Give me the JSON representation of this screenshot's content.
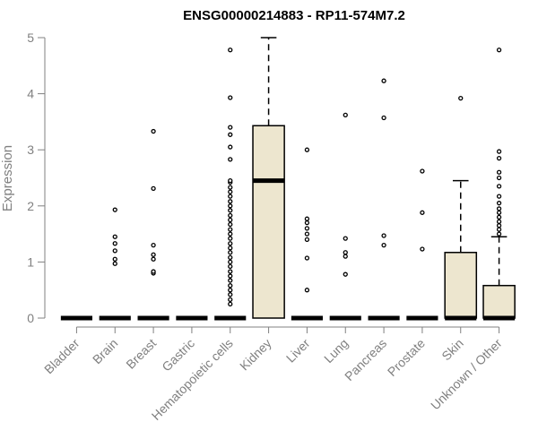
{
  "chart_data": {
    "type": "box",
    "title": "ENSG00000214883 - RP11-574M7.2",
    "xlabel": "",
    "ylabel": "Expression",
    "ylim": [
      0,
      5
    ],
    "yticks": [
      0,
      1,
      2,
      3,
      4,
      5
    ],
    "categories": [
      "Bladder",
      "Brain",
      "Breast",
      "Gastric",
      "Hematopoietic cells",
      "Kidney",
      "Liver",
      "Lung",
      "Pancreas",
      "Prostate",
      "Skin",
      "Unknown / Other"
    ],
    "boxes": [
      {
        "category": "Bladder",
        "q1": 0,
        "median": 0,
        "q3": 0,
        "whisker_low": 0,
        "whisker_high": 0,
        "outliers": []
      },
      {
        "category": "Brain",
        "q1": 0,
        "median": 0,
        "q3": 0,
        "whisker_low": 0,
        "whisker_high": 0,
        "outliers": [
          0.97,
          1.05,
          1.2,
          1.33,
          1.45,
          1.93
        ]
      },
      {
        "category": "Breast",
        "q1": 0,
        "median": 0,
        "q3": 0,
        "whisker_low": 0,
        "whisker_high": 0,
        "outliers": [
          0.8,
          0.83,
          1.05,
          1.13,
          1.3,
          2.31,
          3.33
        ]
      },
      {
        "category": "Gastric",
        "q1": 0,
        "median": 0,
        "q3": 0,
        "whisker_low": 0,
        "whisker_high": 0,
        "outliers": []
      },
      {
        "category": "Hematopoietic cells",
        "q1": 0,
        "median": 0,
        "q3": 0,
        "whisker_low": 0,
        "whisker_high": 0,
        "outliers": [
          0.25,
          0.33,
          0.42,
          0.5,
          0.58,
          0.67,
          0.75,
          0.83,
          0.92,
          1.0,
          1.08,
          1.17,
          1.25,
          1.33,
          1.42,
          1.5,
          1.58,
          1.67,
          1.75,
          1.83,
          1.92,
          2.0,
          2.08,
          2.17,
          2.25,
          2.33,
          2.42,
          2.45,
          2.83,
          3.05,
          3.27,
          3.4,
          3.93,
          4.78
        ]
      },
      {
        "category": "Kidney",
        "q1": 0,
        "median": 2.45,
        "q3": 3.43,
        "whisker_low": 0,
        "whisker_high": 5.0,
        "outliers": []
      },
      {
        "category": "Liver",
        "q1": 0,
        "median": 0,
        "q3": 0,
        "whisker_low": 0,
        "whisker_high": 0,
        "outliers": [
          0.5,
          1.07,
          1.4,
          1.5,
          1.6,
          1.7,
          1.77,
          3.0
        ]
      },
      {
        "category": "Lung",
        "q1": 0,
        "median": 0,
        "q3": 0,
        "whisker_low": 0,
        "whisker_high": 0,
        "outliers": [
          0.78,
          1.1,
          1.17,
          1.42,
          3.62
        ]
      },
      {
        "category": "Pancreas",
        "q1": 0,
        "median": 0,
        "q3": 0,
        "whisker_low": 0,
        "whisker_high": 0,
        "outliers": [
          1.3,
          1.47,
          3.57,
          4.23
        ]
      },
      {
        "category": "Prostate",
        "q1": 0,
        "median": 0,
        "q3": 0,
        "whisker_low": 0,
        "whisker_high": 0,
        "outliers": [
          1.23,
          1.88,
          2.62
        ]
      },
      {
        "category": "Skin",
        "q1": 0,
        "median": 0,
        "q3": 1.17,
        "whisker_low": 0,
        "whisker_high": 2.45,
        "outliers": [
          3.92
        ]
      },
      {
        "category": "Unknown / Other",
        "q1": 0,
        "median": 0,
        "q3": 0.58,
        "whisker_low": 0,
        "whisker_high": 1.45,
        "outliers": [
          1.5,
          1.58,
          1.65,
          1.72,
          1.8,
          1.88,
          1.95,
          2.05,
          2.17,
          2.35,
          2.5,
          2.6,
          2.85,
          2.97,
          4.78
        ]
      }
    ],
    "colors": {
      "box_fill": "#ede6cf",
      "box_stroke": "#000000",
      "axis": "#808080",
      "title": "#000000"
    },
    "grid": false,
    "legend": "none"
  }
}
